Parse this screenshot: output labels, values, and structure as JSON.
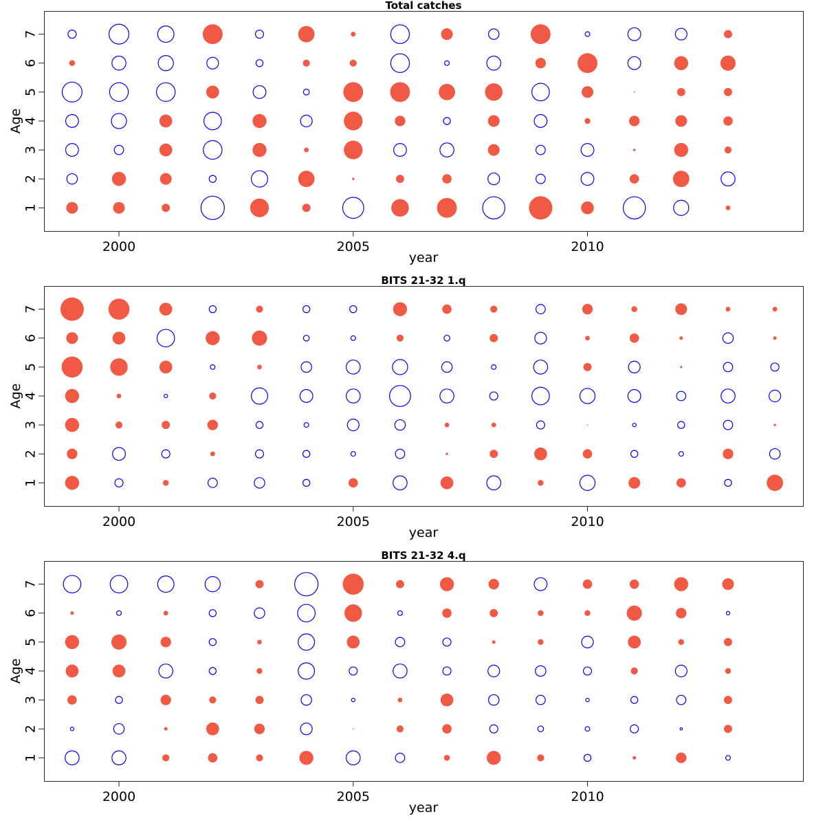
{
  "chart_data": [
    {
      "type": "scatter",
      "title": "Total catches",
      "xlabel": "year",
      "ylabel": "Age",
      "xlim": [
        1998.4,
        2014.6
      ],
      "ylim": [
        0.2,
        7.8
      ],
      "x_ticks": [
        2000,
        2005,
        2010
      ],
      "y_ticks": [
        1,
        2,
        3,
        4,
        5,
        6,
        7
      ],
      "encoding": "symbol radius proportional to |value|; filled red = positive, open blue = negative",
      "positive_color": "#f05a45",
      "negative_color": "#0000ff",
      "years": [
        1999,
        2000,
        2001,
        2002,
        2003,
        2004,
        2005,
        2006,
        2007,
        2008,
        2009,
        2010,
        2011,
        2012,
        2013
      ],
      "ages": [
        1,
        2,
        3,
        4,
        5,
        6,
        7
      ],
      "values": [
        [
          0.5,
          0.5,
          0.35,
          -1.0,
          0.8,
          0.35,
          -0.9,
          0.75,
          0.85,
          -0.95,
          1.0,
          0.55,
          -0.95,
          -0.65,
          0.2
        ],
        [
          -0.45,
          0.6,
          0.5,
          -0.3,
          -0.7,
          0.7,
          0.1,
          0.35,
          0.4,
          -0.5,
          -0.4,
          -0.55,
          0.4,
          0.7,
          -0.6
        ],
        [
          -0.55,
          -0.4,
          0.55,
          -0.8,
          0.6,
          0.2,
          0.8,
          -0.55,
          -0.6,
          0.5,
          -0.4,
          -0.55,
          0.1,
          0.6,
          0.3
        ],
        [
          -0.55,
          -0.65,
          0.55,
          -0.75,
          0.6,
          -0.5,
          0.8,
          0.45,
          -0.3,
          0.5,
          -0.55,
          0.25,
          0.45,
          0.5,
          0.4
        ],
        [
          -0.85,
          -0.8,
          -0.8,
          0.55,
          -0.55,
          -0.25,
          0.85,
          0.85,
          0.7,
          0.75,
          -0.75,
          0.5,
          0.05,
          0.35,
          0.35
        ],
        [
          0.25,
          -0.6,
          -0.65,
          -0.5,
          -0.3,
          0.3,
          0.3,
          -0.8,
          -0.2,
          -0.6,
          0.45,
          0.85,
          -0.55,
          0.6,
          0.65
        ],
        [
          -0.35,
          -0.85,
          -0.7,
          0.85,
          -0.35,
          0.7,
          0.2,
          -0.8,
          0.5,
          -0.45,
          0.85,
          -0.2,
          -0.55,
          -0.5,
          0.35
        ]
      ]
    },
    {
      "type": "scatter",
      "title": "BITS 21-32 1.q",
      "xlabel": "year",
      "ylabel": "Age",
      "xlim": [
        1998.4,
        2014.6
      ],
      "ylim": [
        0.2,
        7.8
      ],
      "x_ticks": [
        2000,
        2005,
        2010
      ],
      "y_ticks": [
        1,
        2,
        3,
        4,
        5,
        6,
        7
      ],
      "encoding": "symbol radius proportional to |value|; filled red = positive, open blue = negative",
      "positive_color": "#f05a45",
      "negative_color": "#0000ff",
      "years": [
        1999,
        2000,
        2001,
        2002,
        2003,
        2004,
        2005,
        2006,
        2007,
        2008,
        2009,
        2010,
        2011,
        2012,
        2013,
        2014
      ],
      "ages": [
        1,
        2,
        3,
        4,
        5,
        6,
        7
      ],
      "values": [
        [
          0.6,
          -0.35,
          0.25,
          -0.4,
          -0.45,
          -0.3,
          0.4,
          -0.6,
          0.55,
          -0.6,
          0.25,
          -0.65,
          0.5,
          0.4,
          -0.3,
          0.7
        ],
        [
          0.45,
          -0.55,
          -0.35,
          0.2,
          -0.35,
          -0.3,
          -0.2,
          -0.4,
          0.1,
          0.35,
          0.55,
          0.4,
          -0.3,
          -0.2,
          0.45,
          -0.45
        ],
        [
          0.6,
          0.3,
          0.35,
          0.45,
          -0.3,
          -0.2,
          -0.5,
          -0.45,
          0.2,
          0.2,
          -0.35,
          0.05,
          -0.15,
          -0.3,
          -0.4,
          0.1
        ],
        [
          0.6,
          0.2,
          -0.15,
          0.3,
          -0.7,
          -0.55,
          -0.6,
          -0.9,
          -0.6,
          -0.35,
          -0.75,
          -0.65,
          -0.55,
          -0.4,
          -0.6,
          -0.5
        ],
        [
          0.9,
          0.75,
          0.55,
          -0.2,
          0.2,
          -0.45,
          -0.6,
          -0.65,
          -0.45,
          -0.2,
          -0.6,
          0.35,
          -0.5,
          0.1,
          -0.4,
          -0.35
        ],
        [
          0.5,
          0.55,
          -0.75,
          0.6,
          0.65,
          -0.25,
          -0.2,
          0.3,
          -0.25,
          0.35,
          -0.5,
          0.2,
          0.4,
          0.15,
          -0.45,
          0.15
        ],
        [
          1.0,
          0.9,
          0.55,
          -0.3,
          0.3,
          -0.3,
          -0.3,
          0.6,
          0.4,
          0.3,
          -0.4,
          0.45,
          0.25,
          0.5,
          0.2,
          0.2
        ]
      ]
    },
    {
      "type": "scatter",
      "title": "BITS 21-32 4.q",
      "xlabel": "year",
      "ylabel": "Age",
      "xlim": [
        1998.4,
        2014.6
      ],
      "ylim": [
        0.2,
        7.8
      ],
      "x_ticks": [
        2000,
        2005,
        2010
      ],
      "y_ticks": [
        1,
        2,
        3,
        4,
        5,
        6,
        7
      ],
      "encoding": "symbol radius proportional to |value|; filled red = positive, open blue = negative",
      "positive_color": "#f05a45",
      "negative_color": "#0000ff",
      "years": [
        1999,
        2000,
        2001,
        2002,
        2003,
        2004,
        2005,
        2006,
        2007,
        2008,
        2009,
        2010,
        2011,
        2012,
        2013
      ],
      "ages": [
        1,
        2,
        3,
        4,
        5,
        6,
        7
      ],
      "values": [
        [
          -0.6,
          -0.6,
          0.3,
          0.4,
          0.3,
          0.6,
          -0.6,
          -0.4,
          0.25,
          0.6,
          0.3,
          -0.3,
          0.15,
          0.45,
          -0.2
        ],
        [
          -0.15,
          -0.45,
          0.15,
          0.55,
          0.45,
          -0.5,
          0.05,
          0.3,
          0.4,
          -0.35,
          -0.25,
          -0.2,
          -0.35,
          -0.1,
          0.35
        ],
        [
          0.4,
          -0.3,
          0.45,
          0.3,
          0.35,
          -0.45,
          -0.15,
          0.2,
          0.55,
          -0.45,
          -0.4,
          -0.15,
          -0.3,
          -0.4,
          0.35
        ],
        [
          0.55,
          0.55,
          -0.6,
          -0.3,
          0.25,
          -0.7,
          -0.35,
          -0.6,
          -0.35,
          -0.5,
          -0.45,
          -0.35,
          0.3,
          -0.5,
          0.25
        ],
        [
          0.6,
          0.65,
          0.45,
          -0.3,
          0.2,
          -0.7,
          0.55,
          -0.4,
          -0.35,
          0.15,
          0.25,
          -0.5,
          0.55,
          0.25,
          0.35
        ],
        [
          0.15,
          -0.2,
          0.2,
          -0.3,
          -0.45,
          -0.75,
          0.75,
          -0.2,
          0.4,
          0.35,
          0.25,
          0.25,
          0.65,
          0.45,
          -0.15
        ],
        [
          -0.75,
          -0.75,
          -0.7,
          -0.65,
          0.35,
          -1.0,
          0.9,
          0.35,
          0.6,
          0.45,
          -0.55,
          0.4,
          0.4,
          0.6,
          0.5
        ]
      ]
    }
  ]
}
